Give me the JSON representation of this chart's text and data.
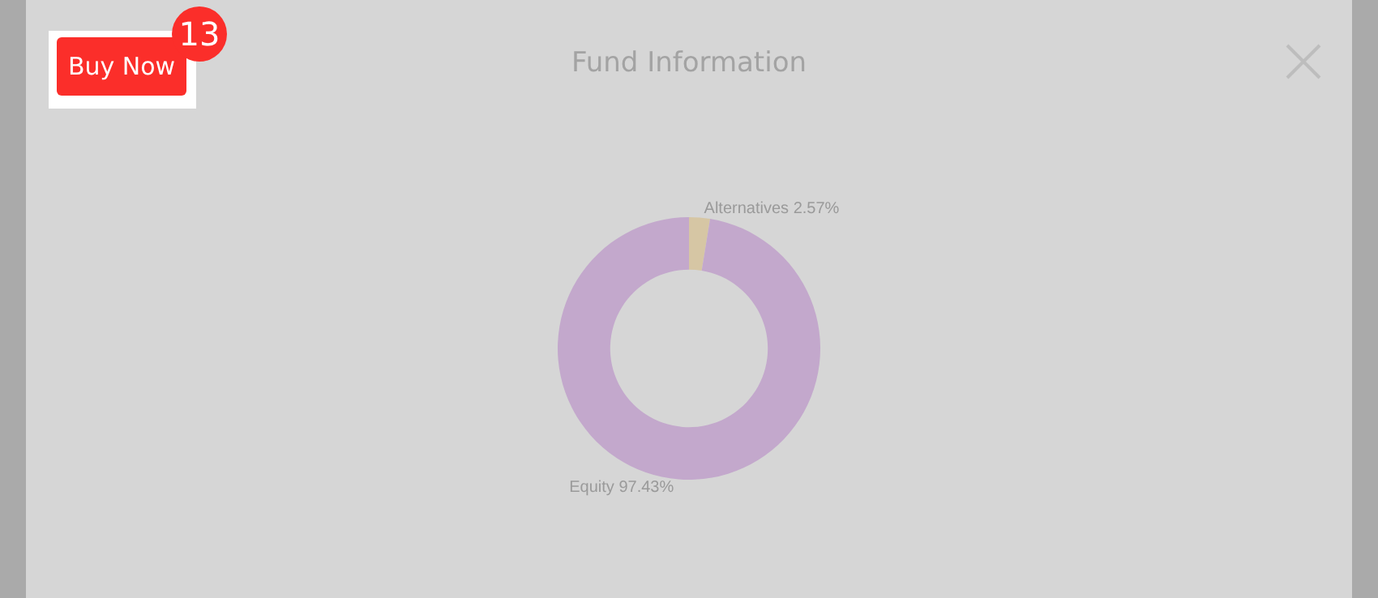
{
  "chart_data": {
    "type": "donut",
    "title": "Fund Information",
    "categories": [
      "Alternatives",
      "Equity"
    ],
    "values": [
      2.57,
      97.43
    ],
    "colors": [
      "#d6c6a4",
      "#c3a8cc"
    ],
    "value_labels": [
      "2.57%",
      "97.43%"
    ],
    "legend": false,
    "annotations": [
      "Buy Now",
      "13"
    ]
  }
}
